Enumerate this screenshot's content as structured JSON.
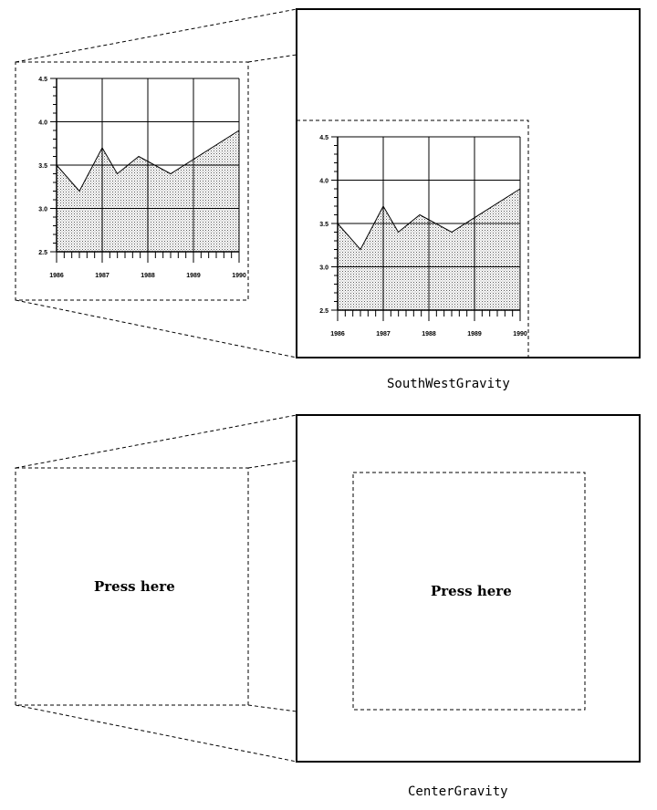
{
  "diagrams": [
    {
      "caption": "SouthWestGravity"
    },
    {
      "caption": "CenterGravity",
      "widget_label": "Press here"
    }
  ],
  "chart_data": {
    "type": "area",
    "x": [
      1986,
      1986.5,
      1987,
      1987.33,
      1987.8,
      1988.5,
      1990
    ],
    "values": [
      3.5,
      3.2,
      3.7,
      3.4,
      3.6,
      3.4,
      3.9
    ],
    "x_ticks": [
      "1986",
      "1987",
      "1988",
      "1989",
      "1990"
    ],
    "y_ticks": [
      "2.5",
      "3.0",
      "3.5",
      "4.0",
      "4.5"
    ],
    "xlim": [
      1986,
      1990
    ],
    "ylim": [
      2.5,
      4.5
    ],
    "grid": true,
    "fill": "dotted"
  }
}
